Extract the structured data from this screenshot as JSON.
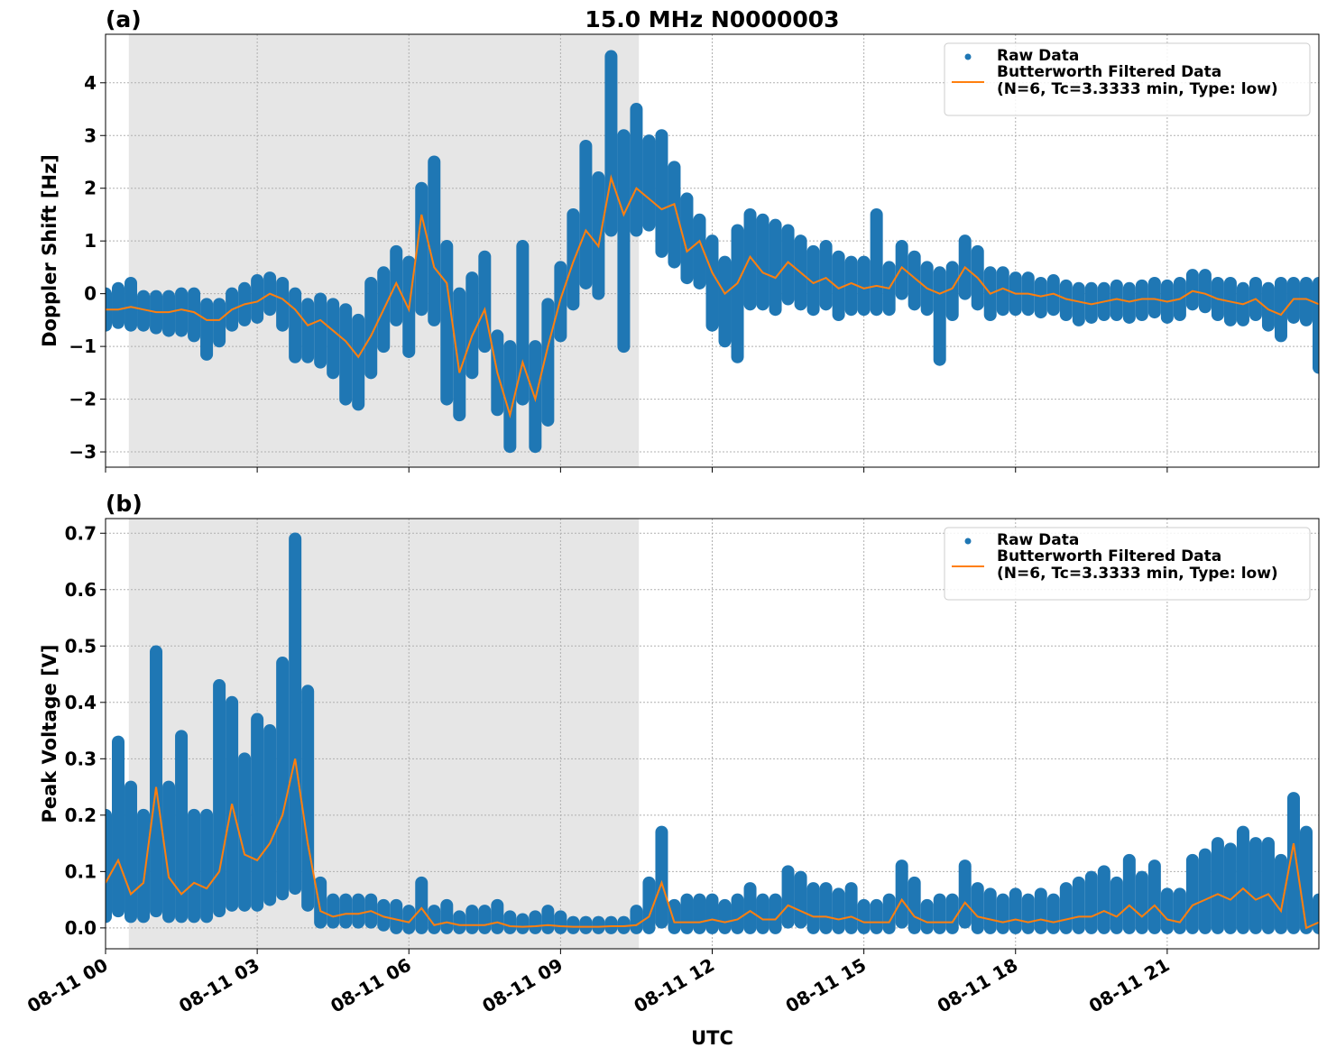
{
  "chart_data": [
    {
      "type": "scatter-line",
      "panel_label": "(a)",
      "title": "15.0 MHz N0000003",
      "ylabel": "Doppler Shift [Hz]",
      "xlim": [
        0,
        24
      ],
      "ylim": [
        -3.29,
        4.92
      ],
      "grid": true,
      "legend": "upper right",
      "shade": [
        0.46,
        10.55
      ],
      "show_xticklabels": false,
      "xticks": [
        0,
        3,
        6,
        9,
        12,
        15,
        18,
        21
      ],
      "yticks": [
        {
          "value": -3,
          "label": "−3"
        },
        {
          "value": -2,
          "label": "−2"
        },
        {
          "value": -1,
          "label": "−1"
        },
        0,
        1,
        2,
        3,
        4
      ],
      "x": [
        0,
        0.25,
        0.5,
        0.75,
        1,
        1.25,
        1.5,
        1.75,
        2,
        2.25,
        2.5,
        2.75,
        3,
        3.25,
        3.5,
        3.75,
        4,
        4.25,
        4.5,
        4.75,
        5,
        5.25,
        5.5,
        5.75,
        6,
        6.25,
        6.5,
        6.75,
        7,
        7.25,
        7.5,
        7.75,
        8,
        8.25,
        8.5,
        8.75,
        9,
        9.25,
        9.5,
        9.75,
        10,
        10.25,
        10.5,
        10.75,
        11,
        11.25,
        11.5,
        11.75,
        12,
        12.25,
        12.5,
        12.75,
        13,
        13.25,
        13.5,
        13.75,
        14,
        14.25,
        14.5,
        14.75,
        15,
        15.25,
        15.5,
        15.75,
        16,
        16.25,
        16.5,
        16.75,
        17,
        17.25,
        17.5,
        17.75,
        18,
        18.25,
        18.5,
        18.75,
        19,
        19.25,
        19.5,
        19.75,
        20,
        20.25,
        20.5,
        20.75,
        21,
        21.25,
        21.5,
        21.75,
        22,
        22.25,
        22.5,
        22.75,
        23,
        23.25,
        23.5,
        23.75,
        24
      ],
      "series": [
        {
          "name": "Raw Data",
          "color": "#1f77b4",
          "high": [
            0.0,
            0.1,
            0.2,
            -0.05,
            -0.05,
            -0.05,
            0.0,
            0.0,
            -0.2,
            -0.2,
            0.0,
            0.1,
            0.25,
            0.3,
            0.2,
            0.0,
            -0.2,
            -0.1,
            -0.2,
            -0.3,
            -0.5,
            0.2,
            0.4,
            0.8,
            0.6,
            2.0,
            2.5,
            0.9,
            0.0,
            0.3,
            0.7,
            -0.8,
            -1.0,
            0.9,
            -1.0,
            -0.2,
            0.5,
            1.5,
            2.8,
            2.2,
            4.5,
            3.0,
            3.5,
            2.9,
            3.0,
            2.4,
            1.8,
            1.4,
            1.0,
            0.6,
            1.2,
            1.5,
            1.4,
            1.3,
            1.2,
            1.0,
            0.8,
            0.9,
            0.7,
            0.6,
            0.6,
            1.5,
            0.5,
            0.9,
            0.7,
            0.5,
            0.4,
            0.5,
            1.0,
            0.8,
            0.4,
            0.4,
            0.3,
            0.3,
            0.2,
            0.25,
            0.15,
            0.1,
            0.1,
            0.1,
            0.15,
            0.1,
            0.15,
            0.2,
            0.15,
            0.2,
            0.35,
            0.35,
            0.2,
            0.2,
            0.1,
            0.2,
            0.1,
            0.2,
            0.2,
            0.2,
            0.2
          ],
          "low": [
            -0.6,
            -0.55,
            -0.6,
            -0.6,
            -0.65,
            -0.7,
            -0.7,
            -0.8,
            -1.15,
            -0.9,
            -0.6,
            -0.5,
            -0.45,
            -0.3,
            -0.6,
            -1.2,
            -1.2,
            -1.3,
            -1.5,
            -2.0,
            -2.1,
            -1.5,
            -1.0,
            -0.5,
            -1.1,
            -0.3,
            -0.5,
            -2.0,
            -2.3,
            -1.5,
            -1.0,
            -2.2,
            -2.9,
            -2.0,
            -2.9,
            -2.4,
            -0.8,
            -0.2,
            0.2,
            0.0,
            1.2,
            -1.0,
            1.2,
            1.3,
            0.8,
            0.6,
            0.3,
            0.2,
            -0.6,
            -0.9,
            -1.2,
            -0.2,
            -0.2,
            -0.3,
            -0.1,
            -0.2,
            -0.3,
            -0.2,
            -0.4,
            -0.3,
            -0.3,
            -0.3,
            -0.3,
            0.0,
            -0.2,
            -0.3,
            -1.25,
            -0.4,
            0.0,
            -0.2,
            -0.4,
            -0.3,
            -0.3,
            -0.3,
            -0.35,
            -0.3,
            -0.4,
            -0.5,
            -0.45,
            -0.4,
            -0.4,
            -0.45,
            -0.4,
            -0.35,
            -0.45,
            -0.4,
            -0.2,
            -0.25,
            -0.4,
            -0.5,
            -0.5,
            -0.4,
            -0.6,
            -0.8,
            -0.45,
            -0.5,
            -1.4
          ]
        },
        {
          "name": "Butterworth Filtered Data\n(N=6, Tc=3.3333 min, Type: low)",
          "color": "#ff7f0e",
          "values": [
            -0.3,
            -0.3,
            -0.25,
            -0.3,
            -0.35,
            -0.35,
            -0.3,
            -0.35,
            -0.5,
            -0.5,
            -0.3,
            -0.2,
            -0.15,
            0.0,
            -0.1,
            -0.3,
            -0.6,
            -0.5,
            -0.7,
            -0.9,
            -1.2,
            -0.8,
            -0.3,
            0.2,
            -0.3,
            1.5,
            0.5,
            0.2,
            -1.5,
            -0.8,
            -0.3,
            -1.5,
            -2.3,
            -1.3,
            -2.0,
            -1.0,
            -0.1,
            0.6,
            1.2,
            0.9,
            2.2,
            1.5,
            2.0,
            1.8,
            1.6,
            1.7,
            0.8,
            1.0,
            0.4,
            0.0,
            0.2,
            0.7,
            0.4,
            0.3,
            0.6,
            0.4,
            0.2,
            0.3,
            0.1,
            0.2,
            0.1,
            0.15,
            0.1,
            0.5,
            0.3,
            0.1,
            0.0,
            0.1,
            0.5,
            0.3,
            0.0,
            0.1,
            0.0,
            0.0,
            -0.05,
            0.0,
            -0.1,
            -0.15,
            -0.2,
            -0.15,
            -0.1,
            -0.15,
            -0.1,
            -0.1,
            -0.15,
            -0.1,
            0.05,
            0.0,
            -0.1,
            -0.15,
            -0.2,
            -0.1,
            -0.3,
            -0.4,
            -0.1,
            -0.1,
            -0.2
          ]
        }
      ]
    },
    {
      "type": "scatter-line",
      "panel_label": "(b)",
      "ylabel": "Peak Voltage [V]",
      "xlabel": "UTC",
      "xlim": [
        0,
        24
      ],
      "ylim": [
        -0.037,
        0.726
      ],
      "grid": true,
      "legend": "upper right",
      "shade": [
        0.46,
        10.55
      ],
      "show_xticklabels": true,
      "xticks": [
        {
          "value": 0,
          "label": "08-11 00"
        },
        {
          "value": 3,
          "label": "08-11 03"
        },
        {
          "value": 6,
          "label": "08-11 06"
        },
        {
          "value": 9,
          "label": "08-11 09"
        },
        {
          "value": 12,
          "label": "08-11 12"
        },
        {
          "value": 15,
          "label": "08-11 15"
        },
        {
          "value": 18,
          "label": "08-11 18"
        },
        {
          "value": 21,
          "label": "08-11 21"
        }
      ],
      "yticks": [
        {
          "value": 0,
          "label": "0.0"
        },
        0.1,
        0.2,
        0.3,
        0.4,
        0.5,
        0.6,
        0.7
      ],
      "x": [
        0,
        0.25,
        0.5,
        0.75,
        1,
        1.25,
        1.5,
        1.75,
        2,
        2.25,
        2.5,
        2.75,
        3,
        3.25,
        3.5,
        3.75,
        4,
        4.25,
        4.5,
        4.75,
        5,
        5.25,
        5.5,
        5.75,
        6,
        6.25,
        6.5,
        6.75,
        7,
        7.25,
        7.5,
        7.75,
        8,
        8.25,
        8.5,
        8.75,
        9,
        9.25,
        9.5,
        9.75,
        10,
        10.25,
        10.5,
        10.75,
        11,
        11.25,
        11.5,
        11.75,
        12,
        12.25,
        12.5,
        12.75,
        13,
        13.25,
        13.5,
        13.75,
        14,
        14.25,
        14.5,
        14.75,
        15,
        15.25,
        15.5,
        15.75,
        16,
        16.25,
        16.5,
        16.75,
        17,
        17.25,
        17.5,
        17.75,
        18,
        18.25,
        18.5,
        18.75,
        19,
        19.25,
        19.5,
        19.75,
        20,
        20.25,
        20.5,
        20.75,
        21,
        21.25,
        21.5,
        21.75,
        22,
        22.25,
        22.5,
        22.75,
        23,
        23.25,
        23.5,
        23.75,
        24
      ],
      "series": [
        {
          "name": "Raw Data",
          "color": "#1f77b4",
          "high": [
            0.2,
            0.33,
            0.25,
            0.2,
            0.49,
            0.25,
            0.34,
            0.2,
            0.2,
            0.43,
            0.4,
            0.3,
            0.37,
            0.35,
            0.47,
            0.69,
            0.42,
            0.08,
            0.05,
            0.05,
            0.05,
            0.05,
            0.04,
            0.04,
            0.03,
            0.08,
            0.03,
            0.04,
            0.02,
            0.03,
            0.03,
            0.04,
            0.02,
            0.015,
            0.02,
            0.03,
            0.02,
            0.01,
            0.01,
            0.01,
            0.01,
            0.01,
            0.03,
            0.08,
            0.17,
            0.04,
            0.05,
            0.05,
            0.05,
            0.04,
            0.05,
            0.07,
            0.05,
            0.05,
            0.1,
            0.09,
            0.07,
            0.07,
            0.06,
            0.07,
            0.04,
            0.04,
            0.05,
            0.11,
            0.08,
            0.04,
            0.05,
            0.05,
            0.11,
            0.07,
            0.06,
            0.05,
            0.06,
            0.05,
            0.06,
            0.05,
            0.07,
            0.08,
            0.09,
            0.1,
            0.08,
            0.12,
            0.09,
            0.11,
            0.06,
            0.06,
            0.12,
            0.13,
            0.15,
            0.14,
            0.17,
            0.15,
            0.15,
            0.12,
            0.23,
            0.17,
            0.05
          ],
          "low": [
            0.02,
            0.03,
            0.02,
            0.02,
            0.03,
            0.02,
            0.02,
            0.02,
            0.02,
            0.03,
            0.04,
            0.04,
            0.04,
            0.05,
            0.06,
            0.07,
            0.04,
            0.01,
            0.01,
            0.01,
            0.01,
            0.01,
            0.005,
            0.0,
            0.0,
            0.0,
            0.0,
            0.0,
            0.0,
            0.0,
            0.0,
            0.0,
            0.0,
            0.0,
            0.0,
            0.0,
            0.0,
            0.0,
            0.0,
            0.0,
            0.0,
            0.0,
            0.0,
            0.0,
            0.01,
            0.0,
            0.0,
            0.0,
            0.0,
            0.0,
            0.0,
            0.0,
            0.0,
            0.0,
            0.01,
            0.01,
            0.0,
            0.0,
            0.0,
            0.0,
            0.0,
            0.0,
            0.0,
            0.01,
            0.0,
            0.0,
            0.0,
            0.0,
            0.01,
            0.0,
            0.0,
            0.0,
            0.0,
            0.0,
            0.0,
            0.0,
            0.0,
            0.0,
            0.0,
            0.0,
            0.0,
            0.0,
            0.0,
            0.0,
            0.0,
            0.0,
            0.0,
            0.0,
            0.0,
            0.0,
            0.0,
            0.0,
            0.0,
            0.0,
            0.0,
            0.0,
            0.0
          ]
        },
        {
          "name": "Butterworth Filtered Data\n(N=6, Tc=3.3333 min, Type: low)",
          "color": "#ff7f0e",
          "values": [
            0.08,
            0.12,
            0.06,
            0.08,
            0.25,
            0.09,
            0.06,
            0.08,
            0.07,
            0.1,
            0.22,
            0.13,
            0.12,
            0.15,
            0.2,
            0.3,
            0.15,
            0.03,
            0.02,
            0.025,
            0.025,
            0.03,
            0.02,
            0.015,
            0.01,
            0.035,
            0.005,
            0.01,
            0.005,
            0.005,
            0.005,
            0.01,
            0.003,
            0.002,
            0.003,
            0.005,
            0.003,
            0.002,
            0.002,
            0.002,
            0.003,
            0.003,
            0.005,
            0.02,
            0.08,
            0.01,
            0.01,
            0.01,
            0.015,
            0.01,
            0.015,
            0.03,
            0.015,
            0.015,
            0.04,
            0.03,
            0.02,
            0.02,
            0.015,
            0.02,
            0.01,
            0.01,
            0.01,
            0.05,
            0.02,
            0.01,
            0.01,
            0.01,
            0.045,
            0.02,
            0.015,
            0.01,
            0.015,
            0.01,
            0.015,
            0.01,
            0.015,
            0.02,
            0.02,
            0.03,
            0.02,
            0.04,
            0.02,
            0.04,
            0.015,
            0.01,
            0.04,
            0.05,
            0.06,
            0.05,
            0.07,
            0.05,
            0.06,
            0.03,
            0.15,
            0.0,
            0.01
          ]
        }
      ]
    }
  ]
}
